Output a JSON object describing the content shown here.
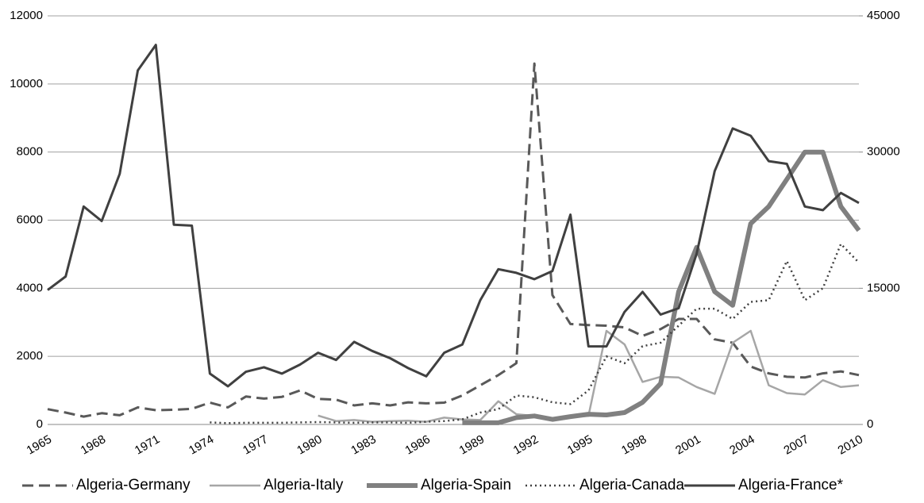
{
  "chart_data": {
    "type": "line",
    "categories": [
      "1965",
      null,
      null,
      "1968",
      null,
      null,
      "1971",
      null,
      null,
      "1974",
      null,
      null,
      "1977",
      null,
      null,
      "1980",
      null,
      null,
      "1983",
      null,
      null,
      "1986",
      null,
      null,
      "1989",
      null,
      null,
      "1992",
      null,
      null,
      "1995",
      null,
      null,
      "1998",
      null,
      null,
      "2001",
      null,
      null,
      "2004",
      null,
      null,
      "2007",
      null,
      null,
      "2010"
    ],
    "ylim": [
      0,
      12000
    ],
    "yticks": [
      0,
      2000,
      4000,
      6000,
      8000,
      10000,
      12000
    ],
    "y2lim": [
      0,
      45000
    ],
    "y2ticks": [
      0,
      15000,
      30000,
      45000
    ],
    "grid": true,
    "legend": "bottom",
    "series": [
      {
        "name": "Algeria-Germany",
        "color": "#595959",
        "style": "dashed",
        "values": [
          450,
          350,
          230,
          330,
          270,
          500,
          420,
          430,
          460,
          640,
          500,
          820,
          760,
          810,
          1000,
          750,
          730,
          560,
          620,
          560,
          650,
          620,
          640,
          850,
          1150,
          1450,
          1800,
          10600,
          3800,
          2950,
          2920,
          2900,
          2850,
          2600,
          2800,
          3100,
          3100,
          2500,
          2400,
          1700,
          1500,
          1400,
          1380,
          1500,
          1560,
          1450
        ]
      },
      {
        "name": "Algeria-Italy",
        "color": "#a6a6a6",
        "style": "solid",
        "values": [
          null,
          null,
          null,
          null,
          null,
          null,
          null,
          null,
          null,
          null,
          null,
          null,
          null,
          null,
          null,
          260,
          100,
          130,
          80,
          100,
          110,
          80,
          200,
          150,
          130,
          680,
          300,
          250,
          150,
          230,
          250,
          2750,
          2350,
          1250,
          1400,
          1380,
          1100,
          900,
          2400,
          2750,
          1150,
          920,
          880,
          1300,
          1100,
          1150
        ]
      },
      {
        "name": "Algeria-Spain",
        "color": "#808080",
        "style": "thick",
        "values": [
          null,
          null,
          null,
          null,
          null,
          null,
          null,
          null,
          null,
          null,
          null,
          null,
          null,
          null,
          null,
          null,
          null,
          null,
          null,
          null,
          null,
          null,
          null,
          50,
          50,
          50,
          200,
          250,
          150,
          230,
          300,
          280,
          350,
          650,
          1200,
          3900,
          5200,
          3900,
          3500,
          5900,
          6400,
          7200,
          8000,
          8000,
          6400,
          5700
        ]
      },
      {
        "name": "Algeria-Canada",
        "color": "#404040",
        "style": "dotted",
        "values": [
          null,
          null,
          null,
          null,
          null,
          null,
          null,
          null,
          null,
          60,
          40,
          50,
          50,
          50,
          60,
          70,
          60,
          50,
          60,
          60,
          50,
          80,
          100,
          150,
          350,
          450,
          850,
          800,
          650,
          600,
          1000,
          2000,
          1800,
          2300,
          2400,
          2900,
          3400,
          3400,
          3100,
          3600,
          3650,
          4800,
          3650,
          4000,
          5300,
          4750
        ]
      },
      {
        "name": "Algeria-France*",
        "color": "#404040",
        "style": "solid",
        "axis": "y2",
        "values": [
          14800,
          16300,
          24000,
          22400,
          27600,
          39000,
          41800,
          22000,
          21900,
          5600,
          4200,
          5800,
          6300,
          5600,
          6600,
          7900,
          7100,
          9100,
          8100,
          7300,
          6200,
          5300,
          7900,
          8800,
          13700,
          17100,
          16700,
          16000,
          16900,
          23100,
          8600,
          8600,
          12400,
          14600,
          12100,
          12800,
          18800,
          27900,
          32600,
          31800,
          29000,
          28700,
          24000,
          23600,
          25500,
          24400
        ]
      }
    ]
  }
}
